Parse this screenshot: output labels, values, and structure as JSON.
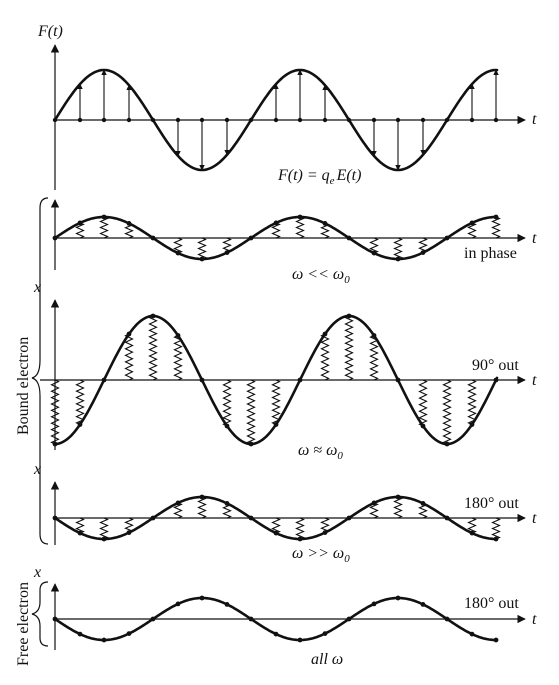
{
  "force_panel": {
    "y_label": "F(t)",
    "t_label": "t",
    "equation": "F(t) = q",
    "equation_sub": "e",
    "equation_tail": "E(t)"
  },
  "bound_electron": {
    "brace_label": "Bound electron",
    "low": {
      "phase_label": "in phase",
      "freq_label": "ω << ω",
      "freq_sub": "0",
      "t_label": "t"
    },
    "resonant": {
      "x_label": "x",
      "phase_label": "90° out",
      "freq_label": "ω ≈ ω",
      "freq_sub": "0",
      "t_label": "t"
    },
    "high": {
      "x_label": "x",
      "phase_label": "180° out",
      "freq_label": "ω >> ω",
      "freq_sub": "0",
      "t_label": "t"
    }
  },
  "free_electron": {
    "brace_label": "Free electron",
    "x_label": "x",
    "phase_label": "180° out",
    "freq_label": "all ω",
    "t_label": "t"
  }
}
